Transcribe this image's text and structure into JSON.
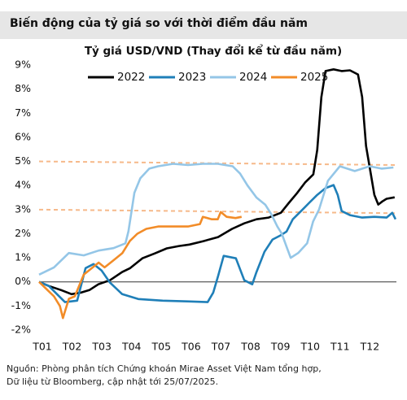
{
  "header": {
    "title": "Biến động của tỷ giá so với thời điểm đầu năm"
  },
  "chart_data": {
    "type": "line",
    "title": "Tỷ giá USD/VND (Thay đổi kể từ đầu năm)",
    "xlim": [
      0,
      12
    ],
    "ylim": [
      -2,
      9
    ],
    "x_axis_at": 0,
    "xticks": [
      {
        "value": 0,
        "label": "T01"
      },
      {
        "value": 1,
        "label": "T02"
      },
      {
        "value": 2,
        "label": "T03"
      },
      {
        "value": 3,
        "label": "T04"
      },
      {
        "value": 4,
        "label": "T05"
      },
      {
        "value": 5,
        "label": "T06"
      },
      {
        "value": 6,
        "label": "T07"
      },
      {
        "value": 7,
        "label": "T08"
      },
      {
        "value": 8,
        "label": "T09"
      },
      {
        "value": 9,
        "label": "T10"
      },
      {
        "value": 10,
        "label": "T11"
      },
      {
        "value": 11,
        "label": "T12"
      }
    ],
    "yticks": [
      {
        "value": -2,
        "label": "-2%"
      },
      {
        "value": -1,
        "label": "-1%"
      },
      {
        "value": 0,
        "label": "0%"
      },
      {
        "value": 1,
        "label": "1%"
      },
      {
        "value": 2,
        "label": "2%"
      },
      {
        "value": 3,
        "label": "3%"
      },
      {
        "value": 4,
        "label": "4%"
      },
      {
        "value": 5,
        "label": "5%"
      },
      {
        "value": 6,
        "label": "6%"
      },
      {
        "value": 7,
        "label": "7%"
      },
      {
        "value": 8,
        "label": "8%"
      },
      {
        "value": 9,
        "label": "9%"
      }
    ],
    "reference_lines": [
      {
        "values": [
          5.0,
          4.85
        ],
        "color": "#f6b98a"
      },
      {
        "values": [
          3.0,
          2.85
        ],
        "color": "#f6b98a"
      }
    ],
    "series": [
      {
        "name": "2022",
        "color": "#000000",
        "x": [
          0,
          0.33,
          0.74,
          1.09,
          1.42,
          1.69,
          1.99,
          2.38,
          2.79,
          3.06,
          3.47,
          3.88,
          4.29,
          4.7,
          5.05,
          5.52,
          6.01,
          6.48,
          6.89,
          7.3,
          7.71,
          8.12,
          8.39,
          8.66,
          8.93,
          9.21,
          9.34,
          9.48,
          9.62,
          9.89,
          10.16,
          10.44,
          10.71,
          10.85,
          10.98,
          11.12,
          11.26,
          11.39,
          11.53,
          11.67,
          11.94
        ],
        "values": [
          0,
          -0.17,
          -0.34,
          -0.51,
          -0.44,
          -0.34,
          -0.1,
          0.07,
          0.41,
          0.57,
          0.98,
          1.18,
          1.39,
          1.49,
          1.55,
          1.69,
          1.86,
          2.2,
          2.43,
          2.6,
          2.67,
          2.87,
          3.28,
          3.68,
          4.12,
          4.46,
          5.47,
          7.67,
          8.75,
          8.82,
          8.75,
          8.78,
          8.61,
          7.67,
          5.64,
          4.63,
          3.61,
          3.21,
          3.34,
          3.45,
          3.51
        ]
      },
      {
        "name": "2023",
        "color": "#1f7fb8",
        "x": [
          0,
          0.33,
          0.6,
          0.87,
          1.28,
          1.56,
          1.83,
          2.1,
          2.38,
          2.79,
          3.33,
          4.15,
          4.97,
          5.66,
          5.85,
          6.01,
          6.2,
          6.61,
          6.89,
          7.16,
          7.3,
          7.57,
          7.84,
          8.11,
          8.31,
          8.52,
          8.8,
          9.07,
          9.34,
          9.62,
          9.89,
          10.03,
          10.16,
          10.44,
          10.85,
          11.26,
          11.67,
          11.86,
          11.97
        ],
        "values": [
          0,
          -0.17,
          -0.51,
          -0.84,
          -0.78,
          0.57,
          0.74,
          0.47,
          -0.03,
          -0.51,
          -0.71,
          -0.78,
          -0.81,
          -0.84,
          -0.44,
          0.24,
          1.08,
          0.98,
          0.07,
          -0.1,
          0.41,
          1.25,
          1.76,
          1.93,
          2.09,
          2.6,
          2.94,
          3.28,
          3.61,
          3.89,
          4.02,
          3.61,
          2.94,
          2.77,
          2.67,
          2.7,
          2.67,
          2.87,
          2.6
        ]
      },
      {
        "name": "2024",
        "color": "#94c6e7",
        "x": [
          0,
          0.5,
          1.0,
          1.5,
          2.0,
          2.5,
          2.9,
          3.0,
          3.2,
          3.4,
          3.7,
          4.0,
          4.5,
          5.0,
          5.5,
          6.0,
          6.5,
          6.75,
          7.0,
          7.3,
          7.6,
          7.8,
          8.0,
          8.15,
          8.3,
          8.45,
          8.7,
          9.0,
          9.2,
          9.4,
          9.7,
          10.1,
          10.6,
          11.1,
          11.5,
          11.9
        ],
        "values": [
          0.3,
          0.6,
          1.2,
          1.1,
          1.3,
          1.4,
          1.6,
          2.1,
          3.7,
          4.3,
          4.7,
          4.8,
          4.9,
          4.85,
          4.9,
          4.9,
          4.8,
          4.5,
          4.0,
          3.5,
          3.2,
          2.8,
          2.3,
          2.0,
          1.5,
          1.0,
          1.2,
          1.6,
          2.5,
          3.0,
          4.2,
          4.8,
          4.6,
          4.8,
          4.7,
          4.75
        ]
      },
      {
        "name": "2025",
        "color": "#f28c28",
        "x": [
          0,
          0.25,
          0.5,
          0.7,
          0.8,
          1.0,
          1.2,
          1.5,
          1.7,
          2.0,
          2.2,
          2.5,
          2.8,
          3.05,
          3.3,
          3.6,
          4.0,
          4.5,
          5.0,
          5.4,
          5.5,
          5.8,
          6.0,
          6.1,
          6.3,
          6.6,
          6.8
        ],
        "values": [
          0,
          -0.3,
          -0.6,
          -1.0,
          -1.5,
          -0.7,
          -0.6,
          0.3,
          0.5,
          0.8,
          0.6,
          0.9,
          1.2,
          1.7,
          2.0,
          2.2,
          2.3,
          2.3,
          2.3,
          2.4,
          2.7,
          2.6,
          2.6,
          2.9,
          2.7,
          2.65,
          2.7
        ]
      }
    ]
  },
  "footer": {
    "lines": [
      "Nguồn: Phòng phân tích Chứng khoán Mirae Asset Việt Nam tổng hợp,",
      "Dữ liệu từ Bloomberg, cập nhật tới 25/07/2025."
    ]
  }
}
